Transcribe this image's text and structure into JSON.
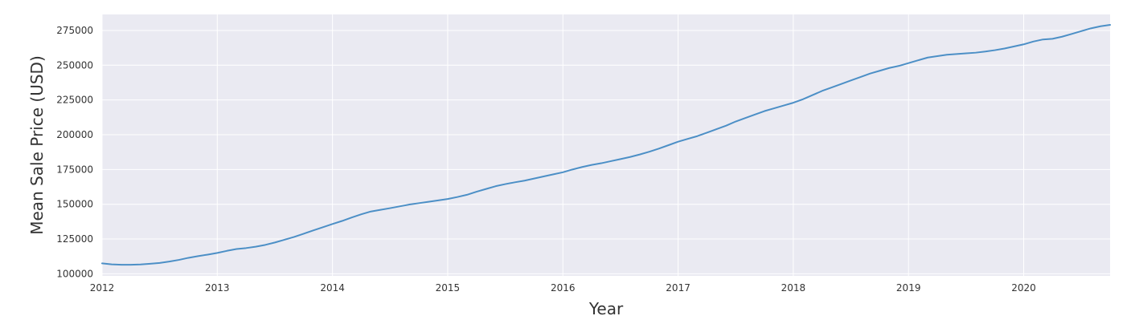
{
  "chart_data": {
    "type": "line",
    "title": "",
    "xlabel": "Year",
    "ylabel": "Mean Sale Price (USD)",
    "xlim": [
      2012.0,
      2020.75
    ],
    "ylim": [
      98500,
      286500
    ],
    "x_ticks": [
      2012,
      2013,
      2014,
      2015,
      2016,
      2017,
      2018,
      2019,
      2020
    ],
    "y_ticks": [
      100000,
      125000,
      150000,
      175000,
      200000,
      225000,
      250000,
      275000
    ],
    "grid": true,
    "background": "#EAEAF2",
    "grid_color": "#FFFFFF",
    "line_color": "#4C8FC6",
    "x": [
      2012.0,
      2012.083,
      2012.167,
      2012.25,
      2012.333,
      2012.417,
      2012.5,
      2012.583,
      2012.667,
      2012.75,
      2012.833,
      2012.917,
      2013.0,
      2013.083,
      2013.167,
      2013.25,
      2013.333,
      2013.417,
      2013.5,
      2013.583,
      2013.667,
      2013.75,
      2013.833,
      2013.917,
      2014.0,
      2014.083,
      2014.167,
      2014.25,
      2014.333,
      2014.417,
      2014.5,
      2014.583,
      2014.667,
      2014.75,
      2014.833,
      2014.917,
      2015.0,
      2015.083,
      2015.167,
      2015.25,
      2015.333,
      2015.417,
      2015.5,
      2015.583,
      2015.667,
      2015.75,
      2015.833,
      2015.917,
      2016.0,
      2016.083,
      2016.167,
      2016.25,
      2016.333,
      2016.417,
      2016.5,
      2016.583,
      2016.667,
      2016.75,
      2016.833,
      2016.917,
      2017.0,
      2017.083,
      2017.167,
      2017.25,
      2017.333,
      2017.417,
      2017.5,
      2017.583,
      2017.667,
      2017.75,
      2017.833,
      2017.917,
      2018.0,
      2018.083,
      2018.167,
      2018.25,
      2018.333,
      2018.417,
      2018.5,
      2018.583,
      2018.667,
      2018.75,
      2018.833,
      2018.917,
      2019.0,
      2019.083,
      2019.167,
      2019.25,
      2019.333,
      2019.417,
      2019.5,
      2019.583,
      2019.667,
      2019.75,
      2019.833,
      2019.917,
      2020.0,
      2020.083,
      2020.167,
      2020.25,
      2020.333,
      2020.417,
      2020.5,
      2020.583,
      2020.667,
      2020.75
    ],
    "series": [
      {
        "values": [
          107500,
          106800,
          106500,
          106500,
          106700,
          107200,
          107800,
          108800,
          110000,
          111500,
          112700,
          113800,
          115000,
          116500,
          117800,
          118500,
          119500,
          120800,
          122500,
          124500,
          126500,
          128800,
          131200,
          133500,
          135800,
          138000,
          140500,
          142800,
          144800,
          146000,
          147200,
          148500,
          149800,
          150800,
          151800,
          152800,
          153800,
          155200,
          156800,
          159000,
          161000,
          163000,
          164500,
          165800,
          167000,
          168500,
          170000,
          171500,
          173000,
          175000,
          176800,
          178300,
          179500,
          181000,
          182500,
          184000,
          185800,
          187800,
          190000,
          192500,
          195000,
          197000,
          199000,
          201500,
          204000,
          206500,
          209500,
          212000,
          214500,
          217000,
          219000,
          221000,
          223000,
          225500,
          228500,
          231500,
          234000,
          236500,
          239000,
          241500,
          244000,
          246000,
          248000,
          249500,
          251500,
          253500,
          255500,
          256500,
          257500,
          258000,
          258500,
          259000,
          259800,
          260800,
          262000,
          263500,
          265000,
          267000,
          268500,
          269000,
          270500,
          272500,
          274500,
          276500,
          278000,
          279000
        ]
      }
    ]
  }
}
